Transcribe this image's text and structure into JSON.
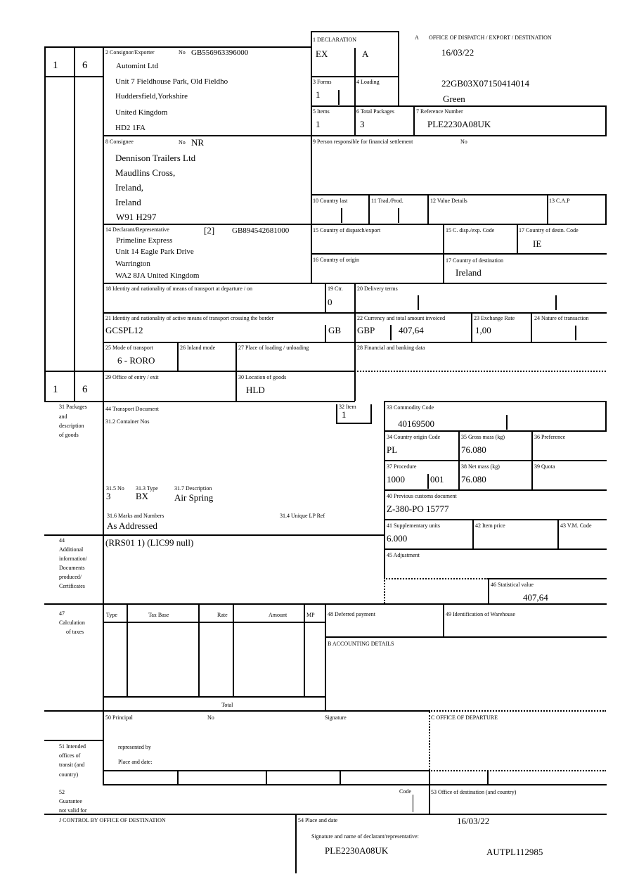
{
  "sheet": {
    "copy_number": "1",
    "form_number": "6"
  },
  "office": {
    "label": "A",
    "title": "OFFICE OF DISPATCH / EXPORT / DESTINATION",
    "date": "16/03/22",
    "mrn": "22GB03X07150414014",
    "route": "Green"
  },
  "box1": {
    "label": "1 DECLARATION",
    "type": "EX",
    "subtype": "A"
  },
  "box2": {
    "label": "2 Consignor/Exporter",
    "no_label": "No",
    "eori": "GB556963396000",
    "name": "Automint Ltd",
    "address1": "Unit 7 Fieldhouse Park, Old Fieldho",
    "address2": "Huddersfield,Yorkshire",
    "country": "United Kingdom",
    "postcode": "HD2 1FA"
  },
  "box3": {
    "label": "3 Forms",
    "value": "1"
  },
  "box4": {
    "label": "4 Loading"
  },
  "box5": {
    "label": "5 Items",
    "value": "1"
  },
  "box6": {
    "label": "6 Total Packages",
    "value": "3"
  },
  "box7": {
    "label": "7 Reference Number",
    "value": "PLE2230A08UK"
  },
  "box8": {
    "label": "8 Consignee",
    "no_label": "No",
    "no_value": "NR",
    "name": "Dennison Trailers Ltd",
    "address1": "Maudlins Cross,",
    "address2": "Ireland,",
    "country": "Ireland",
    "postcode": "W91 H297"
  },
  "box9": {
    "label": "9 Person responsible for financial settlement",
    "no_label": "No"
  },
  "box10": {
    "label": "10 Country last"
  },
  "box11": {
    "label": "11 Trad./Prod."
  },
  "box12": {
    "label": "12 Value Details"
  },
  "box13": {
    "label": "13 C.A.P"
  },
  "box14": {
    "label": "14 Declarant/Representative",
    "code": "[2]",
    "eori": "GB894542681000",
    "name": "Primeline Express",
    "address1": "Unit 14 Eagle Park Drive",
    "city": "Warrington",
    "postcode_country": "WA2 8JA United Kingdom"
  },
  "box15": {
    "label": "15 Country of dispatch/export"
  },
  "box15a": {
    "label": "15 C. disp./exp. Code"
  },
  "box17a": {
    "label": "17 Country of destn. Code",
    "value": "IE"
  },
  "box16": {
    "label": "16 Country of origin"
  },
  "box17": {
    "label": "17 Country of destination",
    "value": "Ireland"
  },
  "box18": {
    "label": "18 Identity and nationality of means of transport at departure / on"
  },
  "box19": {
    "label": "19 Ctr.",
    "value": "0"
  },
  "box20": {
    "label": "20 Delivery terms"
  },
  "box21": {
    "label": "21 Identity and nationality of active means of transport crossing the border",
    "value": "GCSPL12",
    "nationality": "GB"
  },
  "box22": {
    "label": "22 Currency and total amount invoiced",
    "currency": "GBP",
    "amount": "407,64"
  },
  "box23": {
    "label": "23 Exchange Rate",
    "value": "1,00"
  },
  "box24": {
    "label": "24 Nature of transaction"
  },
  "box25": {
    "label": "25 Mode of transport",
    "value": "6 - RORO"
  },
  "box26": {
    "label": "26 Inland mode"
  },
  "box27": {
    "label": "27 Place of loading / unloading"
  },
  "box28": {
    "label": "28 Financial and banking data"
  },
  "box29": {
    "label": "29 Office of entry / exit"
  },
  "box30": {
    "label": "30 Location of goods",
    "value": "HLD"
  },
  "box31": {
    "side_label": [
      "31 Packages",
      "and",
      "description",
      "of goods"
    ],
    "transport_doc_label": "44 Transport Document",
    "container_label": "31.2 Container Nos",
    "no_label": "31.5 No",
    "no_value": "3",
    "type_label": "31.3 Type",
    "type_value": "BX",
    "desc_label": "31.7 Description",
    "desc_value": "Air Spring",
    "marks_label": "31.6 Marks and Numbers",
    "marks_value": "As Addressed",
    "lp_label": "31.4 Unique LP Ref"
  },
  "box32": {
    "label": "32 Item",
    "value": "1"
  },
  "box33": {
    "label": "33 Commodity Code",
    "value": "40169500"
  },
  "box34": {
    "label": "34 Country origin Code",
    "value": "PL"
  },
  "box35": {
    "label": "35 Gross mass (kg)",
    "value": "76.080"
  },
  "box36": {
    "label": "36 Preference"
  },
  "box37": {
    "label": "37 Procedure",
    "value": "1000",
    "sub_value": "001"
  },
  "box38": {
    "label": "38 Net mass (kg)",
    "value": "76.080"
  },
  "box39": {
    "label": "39 Quota"
  },
  "box40": {
    "label": "40 Previous customs document",
    "value": "Z-380-PO 15777"
  },
  "box41": {
    "label": "41 Supplementary units",
    "value": "6.000"
  },
  "box42": {
    "label": "42 Item price"
  },
  "box43": {
    "label": "43 V.M. Code"
  },
  "box44": {
    "side_label": [
      "44",
      "Additional",
      "information/",
      "Documents",
      "produced/",
      "Certificates"
    ],
    "value": "(RRS01 1) (LIC99 null)"
  },
  "box45": {
    "label": "45 Adjustment"
  },
  "box46": {
    "label": "46 Statistical value",
    "value": "407,64"
  },
  "box47": {
    "side_label": [
      "47",
      "Calculation",
      "of taxes"
    ],
    "columns": [
      "Type",
      "Tax Base",
      "Rate",
      "Amount",
      "MP"
    ],
    "total_label": "Total"
  },
  "box48": {
    "label": "48 Deferred payment"
  },
  "box49": {
    "label": "49 Identification of Warehouse"
  },
  "boxB": {
    "label": "B ACCOUNTING DETAILS"
  },
  "box50": {
    "label": "50 Principal",
    "no_label": "No",
    "signature_label": "Signature",
    "represented_label": "represented by",
    "place_date_label": "Place and date:"
  },
  "boxC": {
    "label": "C OFFICE OF DEPARTURE"
  },
  "box51": {
    "side_label": [
      "51 Intended",
      "offices of",
      "transit (and",
      "country)"
    ]
  },
  "box52": {
    "side_label": [
      "52",
      "Guarantee",
      "not valid for"
    ],
    "code_label": "Code"
  },
  "box53": {
    "label": "53 Office of destination (and country)"
  },
  "boxJ": {
    "label": "J CONTROL BY OFFICE OF DESTINATION"
  },
  "box54": {
    "label": "54 Place and date",
    "date": "16/03/22",
    "signature_label": "Signature and name of declarant/representative:",
    "reference": "PLE2230A08UK",
    "name": "AUTPL112985"
  }
}
